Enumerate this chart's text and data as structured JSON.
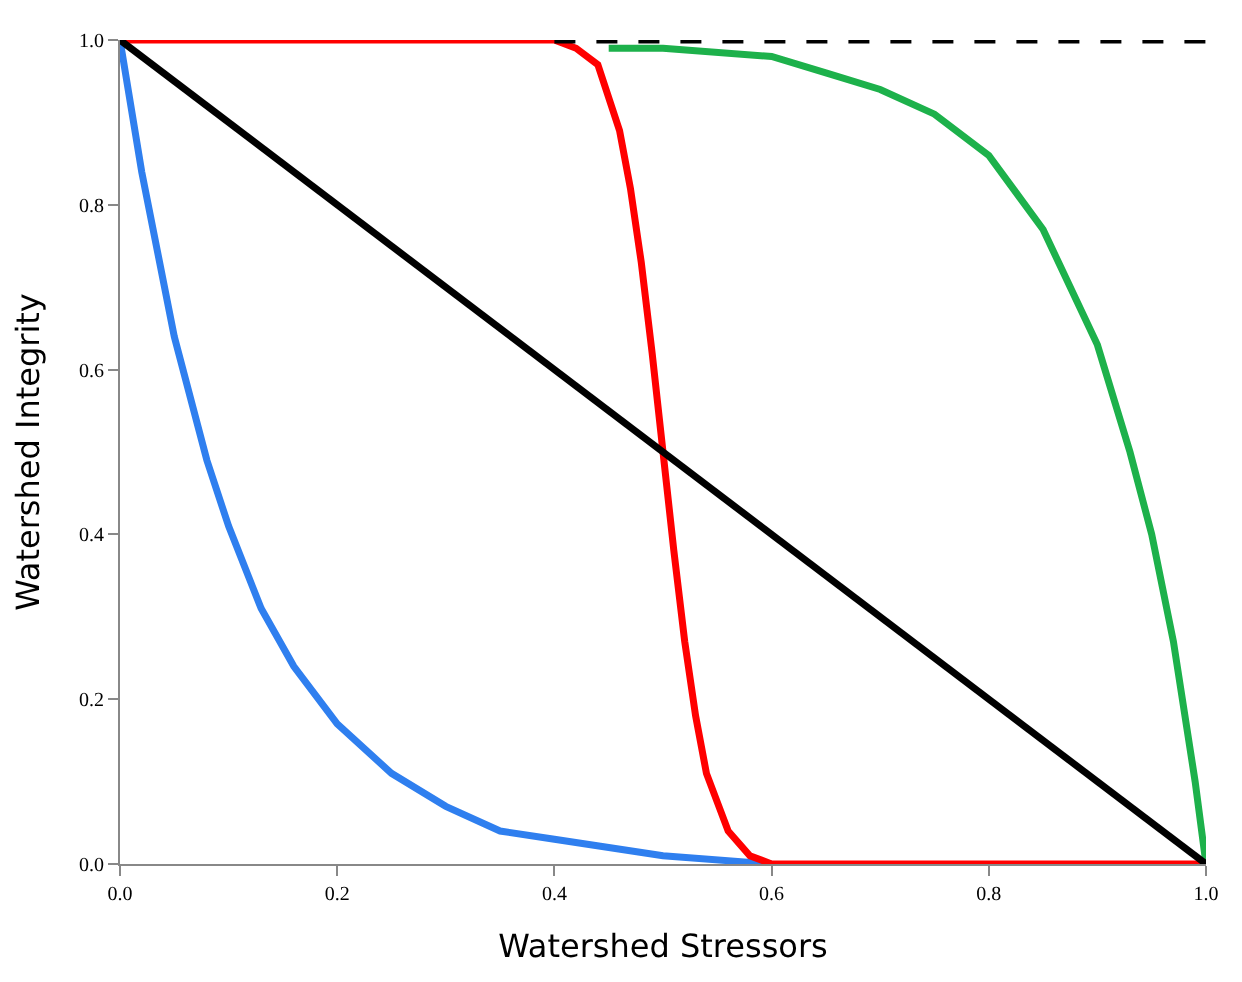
{
  "chart_data": {
    "type": "line",
    "xlabel": "Watershed Stressors",
    "ylabel": "Watershed Integrity",
    "xlim": [
      0,
      1
    ],
    "ylim": [
      0,
      1
    ],
    "xticks": [
      {
        "value": 0,
        "label": "0.0"
      },
      {
        "value": 0.2,
        "label": "0.2"
      },
      {
        "value": 0.4,
        "label": "0.4"
      },
      {
        "value": 0.6,
        "label": "0.6"
      },
      {
        "value": 0.8,
        "label": "0.8"
      },
      {
        "value": 1,
        "label": "1.0"
      }
    ],
    "yticks": [
      {
        "value": 0,
        "label": "0.0"
      },
      {
        "value": 0.2,
        "label": "0.2"
      },
      {
        "value": 0.4,
        "label": "0.4"
      },
      {
        "value": 0.6,
        "label": "0.6"
      },
      {
        "value": 0.8,
        "label": "0.8"
      },
      {
        "value": 1,
        "label": "1.0"
      }
    ],
    "legend": false,
    "marker": "none",
    "line_style": "solid",
    "series": [
      {
        "color": "#2f7fef",
        "x": [
          0,
          0.02,
          0.05,
          0.08,
          0.1,
          0.13,
          0.16,
          0.2,
          0.25,
          0.3,
          0.35,
          0.4,
          0.5,
          0.6
        ],
        "values": [
          1,
          0.84,
          0.64,
          0.49,
          0.41,
          0.31,
          0.24,
          0.17,
          0.11,
          0.07,
          0.04,
          0.03,
          0.01,
          0.0
        ]
      },
      {
        "color": "#1db14b",
        "x": [
          0.45,
          0.5,
          0.6,
          0.65,
          0.7,
          0.75,
          0.8,
          0.85,
          0.9,
          0.93,
          0.95,
          0.97,
          0.99,
          1.0
        ],
        "values": [
          0.99,
          0.99,
          0.98,
          0.96,
          0.94,
          0.91,
          0.86,
          0.77,
          0.63,
          0.5,
          0.4,
          0.27,
          0.1,
          0.0
        ]
      },
      {
        "color": "#ff0000",
        "x": [
          0,
          0.4,
          0.42,
          0.44,
          0.46,
          0.47,
          0.48,
          0.49,
          0.5,
          0.51,
          0.52,
          0.53,
          0.54,
          0.56,
          0.58,
          0.6,
          1.0
        ],
        "values": [
          1,
          1,
          0.99,
          0.97,
          0.89,
          0.82,
          0.73,
          0.62,
          0.5,
          0.38,
          0.27,
          0.18,
          0.11,
          0.04,
          0.01,
          0.0,
          0.0
        ]
      },
      {
        "color": "#000000",
        "x": [
          0,
          1
        ],
        "values": [
          1,
          0
        ]
      },
      {
        "color": "#000000",
        "line_style": "dashed",
        "x": [
          0.4,
          1
        ],
        "values": [
          1,
          1
        ]
      }
    ]
  }
}
